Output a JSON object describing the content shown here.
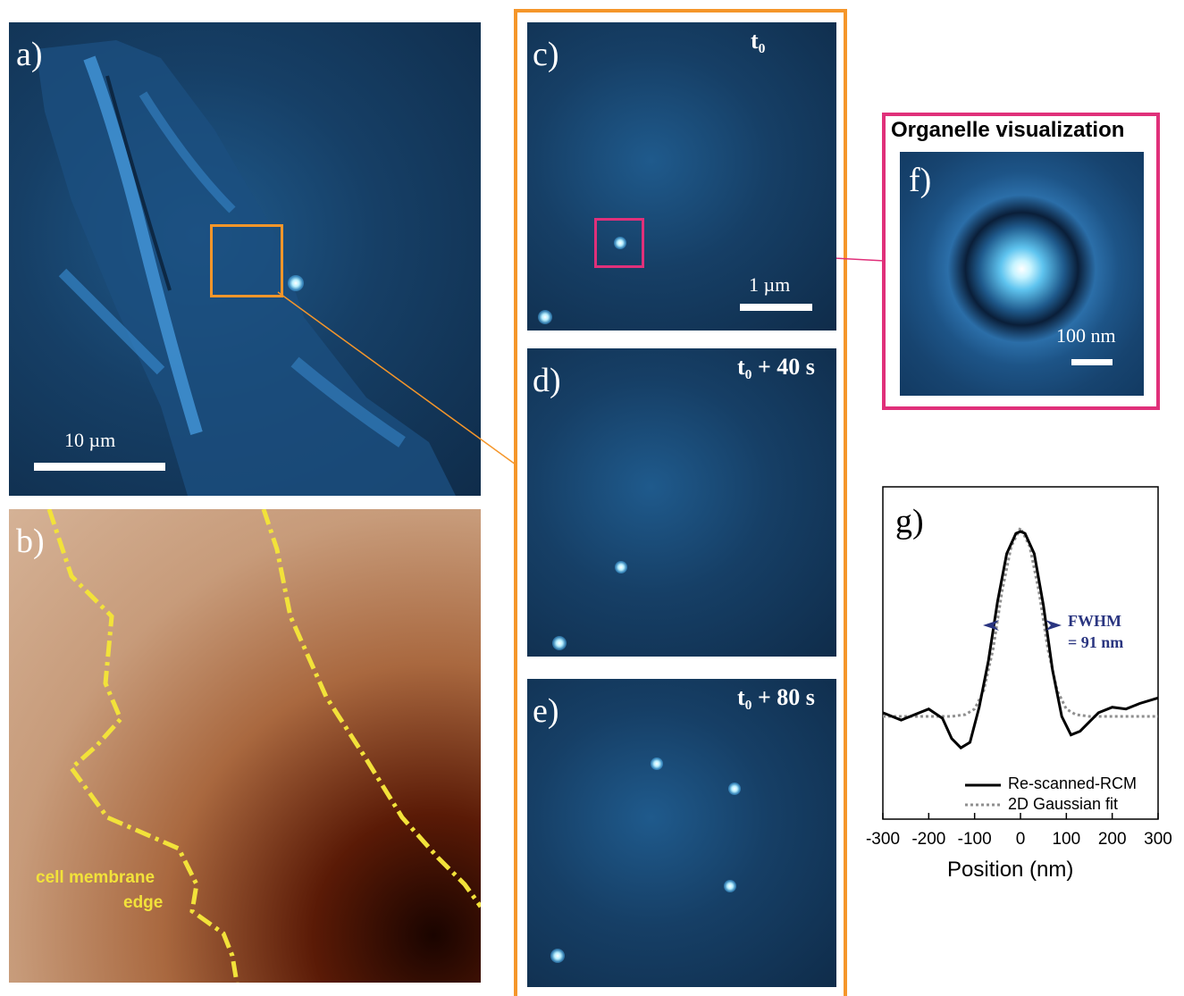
{
  "panel_a": {
    "letter": "a)",
    "scale_label": "10 µm"
  },
  "panel_b": {
    "letter": "b)",
    "annotation_line1": "cell membrane",
    "annotation_line2": "edge"
  },
  "panel_c": {
    "letter": "c)",
    "time": "t₀",
    "scale_label": "1 µm"
  },
  "panel_d": {
    "letter": "d)",
    "time": "t₀ + 40 s"
  },
  "panel_e": {
    "letter": "e)",
    "time": "t₀ + 80 s"
  },
  "panel_f": {
    "title": "Organelle visualization",
    "letter": "f)",
    "scale_label": "100 nm"
  },
  "panel_g": {
    "letter": "g)",
    "fwhm_line1": "FWHM",
    "fwhm_line2": "= 91 nm",
    "xlabel": "Position (nm)"
  },
  "colors": {
    "orange": "#f5962a",
    "magenta": "#e0307a",
    "yellow": "#f2e23a",
    "navy": "#2a3580"
  },
  "chart_data": {
    "type": "line",
    "xlabel": "Position (nm)",
    "xlim": [
      -300,
      300
    ],
    "x_ticks": [
      -300,
      -200,
      -100,
      0,
      100,
      200,
      300
    ],
    "tick_labels": [
      "-300",
      "-200",
      "-100",
      "0",
      "100",
      "200",
      "300"
    ],
    "legend": [
      "Re-scanned-RCM",
      "2D Gaussian fit"
    ],
    "legend_position": "bottom-right",
    "annotation": "FWHM = 91 nm",
    "series": [
      {
        "name": "Re-scanned-RCM",
        "x": [
          -300,
          -260,
          -230,
          -200,
          -170,
          -150,
          -130,
          -110,
          -90,
          -70,
          -50,
          -30,
          -10,
          0,
          10,
          30,
          50,
          70,
          90,
          110,
          130,
          150,
          170,
          200,
          230,
          260,
          300
        ],
        "y": [
          0.02,
          -0.02,
          0.01,
          0.04,
          -0.01,
          -0.12,
          -0.17,
          -0.14,
          0.05,
          0.3,
          0.62,
          0.88,
          0.99,
          1.0,
          0.99,
          0.88,
          0.6,
          0.25,
          0.0,
          -0.1,
          -0.08,
          -0.03,
          0.02,
          0.05,
          0.04,
          0.07,
          0.1
        ]
      },
      {
        "name": "2D Gaussian fit",
        "x": [
          -300,
          -200,
          -150,
          -120,
          -100,
          -80,
          -60,
          -40,
          -20,
          0,
          20,
          40,
          60,
          80,
          100,
          120,
          150,
          200,
          300
        ],
        "y": [
          0.0,
          0.0,
          0.0,
          0.01,
          0.04,
          0.14,
          0.36,
          0.68,
          0.92,
          1.02,
          0.92,
          0.68,
          0.36,
          0.14,
          0.04,
          0.01,
          0.0,
          0.0,
          0.0
        ]
      }
    ]
  }
}
